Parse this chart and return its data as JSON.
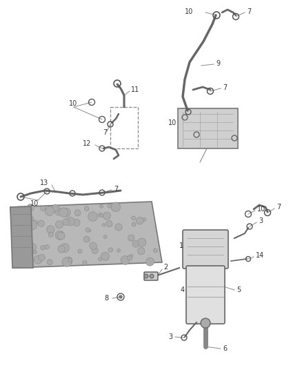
{
  "bg_color": "#ffffff",
  "fig_width": 4.38,
  "fig_height": 5.33,
  "dpi": 100,
  "line_color": "#555555",
  "label_color": "#333333",
  "thin_line": "#888888",
  "font_size": 7.0,
  "engine_color": "#c8c8c8",
  "engine_edge": "#777777",
  "filter_color": "#d8d8d8",
  "part_color": "#bbbbbb"
}
